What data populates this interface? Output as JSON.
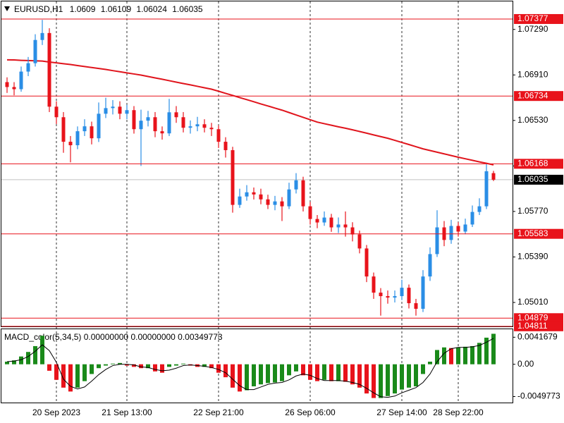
{
  "chart_data": [
    {
      "type": "candlestick",
      "symbol": "EURUSD,H1",
      "open": [
        1.0685,
        1.06809,
        1.06791,
        1.06938,
        1.07008,
        1.07202,
        1.0726,
        1.06645,
        1.06557,
        1.06352,
        1.06323,
        1.0644,
        1.06481,
        1.06381,
        1.06586,
        1.06633,
        1.06645,
        1.06586,
        1.06616,
        1.06457,
        1.06528,
        1.06557,
        1.0644,
        1.06422,
        1.06598,
        1.06557,
        1.06469,
        1.06481,
        1.06498,
        1.06469,
        1.06457,
        1.06352,
        1.06282,
        1.05825,
        1.05895,
        1.0593,
        1.05912,
        1.05871,
        1.05825,
        1.05854,
        1.05813,
        1.05954,
        1.0603,
        1.05813,
        1.05707,
        1.05678,
        1.05719,
        1.05637,
        1.05661,
        1.05637,
        1.05578,
        1.05461,
        1.05227,
        1.05092,
        1.05063,
        1.05051,
        1.05063,
        1.05133,
        1.05004,
        1.04957,
        1.05227,
        1.05414,
        1.05637,
        1.05532,
        1.05649,
        1.05602,
        1.05661,
        1.05766,
        1.05813,
        1.0609
      ],
      "high": [
        1.0689,
        1.0685,
        1.0698,
        1.0706,
        1.0725,
        1.0737,
        1.073,
        1.0669,
        1.066,
        1.064,
        1.0648,
        1.0654,
        1.0652,
        1.0668,
        1.0672,
        1.067,
        1.0669,
        1.0666,
        1.0665,
        1.0662,
        1.0661,
        1.066,
        1.0648,
        1.0671,
        1.0665,
        1.066,
        1.0653,
        1.0656,
        1.0654,
        1.0651,
        1.0649,
        1.0639,
        1.0631,
        1.0596,
        1.0599,
        1.0597,
        1.0596,
        1.0591,
        1.059,
        1.0589,
        1.0601,
        1.0609,
        1.0606,
        1.0585,
        1.0574,
        1.0577,
        1.0575,
        1.0572,
        1.0577,
        1.0568,
        1.0561,
        1.0549,
        1.0526,
        1.0513,
        1.0511,
        1.0511,
        1.052,
        1.0516,
        1.0504,
        1.0528,
        1.0547,
        1.0578,
        1.0569,
        1.057,
        1.0568,
        1.0571,
        1.0582,
        1.0588,
        1.06165,
        1.06109
      ],
      "low": [
        1.0676,
        1.0674,
        1.0677,
        1.069,
        1.0698,
        1.0716,
        1.066,
        1.065,
        1.0626,
        1.0618,
        1.0629,
        1.064,
        1.0633,
        1.0635,
        1.0655,
        1.0658,
        1.0654,
        1.0654,
        1.0642,
        1.0615,
        1.0648,
        1.0639,
        1.0637,
        1.064,
        1.0651,
        1.0643,
        1.0642,
        1.0644,
        1.0643,
        1.064,
        1.063,
        1.0622,
        1.0576,
        1.058,
        1.0586,
        1.0587,
        1.0583,
        1.0579,
        1.0578,
        1.0569,
        1.0579,
        1.0592,
        1.0577,
        1.0566,
        1.0563,
        1.0565,
        1.056,
        1.0559,
        1.0556,
        1.0552,
        1.0542,
        1.0518,
        1.0504,
        1.049,
        1.05,
        1.0501,
        1.0503,
        1.0496,
        1.049,
        1.0493,
        1.0519,
        1.0539,
        1.0548,
        1.055,
        1.0556,
        1.0558,
        1.0564,
        1.0574,
        1.0579,
        1.06024
      ],
      "close": [
        1.06809,
        1.06791,
        1.06938,
        1.07008,
        1.07202,
        1.0726,
        1.06645,
        1.06557,
        1.06352,
        1.06323,
        1.0644,
        1.06481,
        1.06381,
        1.06586,
        1.06633,
        1.06645,
        1.06586,
        1.06616,
        1.06457,
        1.06528,
        1.06557,
        1.0644,
        1.06422,
        1.06598,
        1.06557,
        1.06469,
        1.06481,
        1.06498,
        1.06469,
        1.06457,
        1.06352,
        1.06282,
        1.05825,
        1.05895,
        1.0593,
        1.05912,
        1.05871,
        1.05825,
        1.05854,
        1.05813,
        1.05954,
        1.0603,
        1.05813,
        1.05707,
        1.05678,
        1.05719,
        1.05637,
        1.05661,
        1.05637,
        1.05578,
        1.05461,
        1.05227,
        1.05092,
        1.05063,
        1.05051,
        1.05063,
        1.05133,
        1.05004,
        1.04957,
        1.05227,
        1.05414,
        1.05637,
        1.05532,
        1.05649,
        1.05602,
        1.05661,
        1.05766,
        1.05813,
        1.06106,
        1.06035
      ],
      "up_color": "#2a8ee6",
      "down_color": "#e8131b",
      "ma": {
        "color": "#e0141c",
        "values": [
          1.07036,
          1.07035,
          1.07032,
          1.0703,
          1.07028,
          1.07026,
          1.07018,
          1.07011,
          1.07004,
          1.06997,
          1.06988,
          1.0698,
          1.06972,
          1.06964,
          1.06956,
          1.06946,
          1.06937,
          1.06927,
          1.06918,
          1.06909,
          1.06897,
          1.06885,
          1.06874,
          1.06862,
          1.0685,
          1.06838,
          1.06827,
          1.06815,
          1.06803,
          1.06791,
          1.06774,
          1.06756,
          1.06739,
          1.06721,
          1.06704,
          1.06686,
          1.06668,
          1.06651,
          1.06633,
          1.06616,
          1.06596,
          1.06576,
          1.06556,
          1.06536,
          1.06516,
          1.06503,
          1.0649,
          1.06477,
          1.06465,
          1.06452,
          1.06438,
          1.06424,
          1.06409,
          1.06395,
          1.06381,
          1.06364,
          1.06346,
          1.06329,
          1.06311,
          1.06293,
          1.06279,
          1.06265,
          1.06251,
          1.06237,
          1.06223,
          1.0621,
          1.06197,
          1.06184,
          1.06172,
          1.06159
        ]
      },
      "levels": {
        "color": "#e8131b",
        "values": [
          1.07377,
          1.06734,
          1.06168,
          1.05583,
          1.04879,
          1.04811
        ]
      },
      "current_color": "#c0c0c0",
      "ylim": [
        1.0481,
        1.07524
      ],
      "yticks": [
        {
          "value": 1.0729,
          "label": "1.07290"
        },
        {
          "value": 1.0691,
          "label": "1.06910"
        },
        {
          "value": 1.0653,
          "label": "1.06530"
        },
        {
          "value": 1.0615,
          "label": "1.06150"
        },
        {
          "value": 1.0577,
          "label": "1.05770"
        },
        {
          "value": 1.0539,
          "label": "1.05390"
        },
        {
          "value": 1.0501,
          "label": "1.05010"
        }
      ],
      "xticks": [
        {
          "value": 7,
          "label": "20 Sep 2023"
        },
        {
          "value": 17,
          "label": "21 Sep 13:00"
        },
        {
          "value": 30,
          "label": "22 Sep 21:00"
        },
        {
          "value": 43,
          "label": "26 Sep 06:00"
        },
        {
          "value": 56,
          "label": "27 Sep 14:00"
        },
        {
          "value": 64,
          "label": "28 Sep 22:00"
        }
      ],
      "xgrid": true
    },
    {
      "type": "bar",
      "title": "MACD_color(5,34,5) 0.00000000 0.00000000 0.00349773",
      "values": [
        0.0004,
        0.0006,
        0.0012,
        0.0019,
        0.0028,
        0.0044,
        -0.001,
        -0.0024,
        -0.0036,
        -0.0042,
        -0.0036,
        -0.0026,
        -0.0015,
        -0.0006,
        -0.0002,
        0.0001,
        0.0002,
        -0.0002,
        -0.0004,
        -0.0006,
        -0.0006,
        -0.0011,
        -0.0013,
        -0.0004,
        -0.0002,
        0.0001,
        -0.0002,
        -0.0004,
        -0.0004,
        -0.0006,
        -0.0013,
        -0.002,
        -0.0036,
        -0.0042,
        -0.004,
        -0.0034,
        -0.0031,
        -0.0029,
        -0.0028,
        -0.0026,
        -0.0017,
        -0.0011,
        -0.0017,
        -0.0024,
        -0.0026,
        -0.0024,
        -0.0026,
        -0.0026,
        -0.0027,
        -0.0031,
        -0.0036,
        -0.0045,
        -0.0052,
        -0.0052,
        -0.0049,
        -0.0045,
        -0.0039,
        -0.0036,
        -0.0034,
        -0.0015,
        0.0004,
        0.0022,
        0.0026,
        0.0025,
        0.0026,
        0.0027,
        0.0028,
        0.0033,
        0.0041,
        0.0047
      ],
      "up_color": "#1a8a1a",
      "down_color": "#e8131b",
      "signal": {
        "color": "#000000",
        "values": [
          0.0004,
          0.0005,
          0.0007,
          0.0012,
          0.002,
          0.003,
          0.0021,
          0.0003,
          -0.0023,
          -0.0034,
          -0.0038,
          -0.0035,
          -0.0026,
          -0.0016,
          -0.0008,
          -0.0002,
          0.0,
          0.0,
          -0.0001,
          -0.0004,
          -0.0005,
          -0.0008,
          -0.001,
          -0.0009,
          -0.0006,
          -0.0002,
          -0.0001,
          -0.0002,
          -0.0003,
          -0.0005,
          -0.0008,
          -0.0013,
          -0.0023,
          -0.0033,
          -0.0039,
          -0.0039,
          -0.0035,
          -0.0031,
          -0.0029,
          -0.0028,
          -0.0024,
          -0.0018,
          -0.0015,
          -0.0017,
          -0.0022,
          -0.0025,
          -0.0025,
          -0.0025,
          -0.0026,
          -0.0028,
          -0.0031,
          -0.0037,
          -0.0044,
          -0.005,
          -0.0051,
          -0.0049,
          -0.0044,
          -0.004,
          -0.0036,
          -0.0028,
          -0.0015,
          0.0004,
          0.0017,
          0.0024,
          0.0026,
          0.0026,
          0.0027,
          0.0029,
          0.0034,
          0.004
        ]
      },
      "ylim": [
        -0.0059,
        0.0054
      ],
      "yticks": [
        0.0041679,
        {
          "value": 0,
          "label": "0.00"
        },
        -0.0049773
      ]
    }
  ]
}
